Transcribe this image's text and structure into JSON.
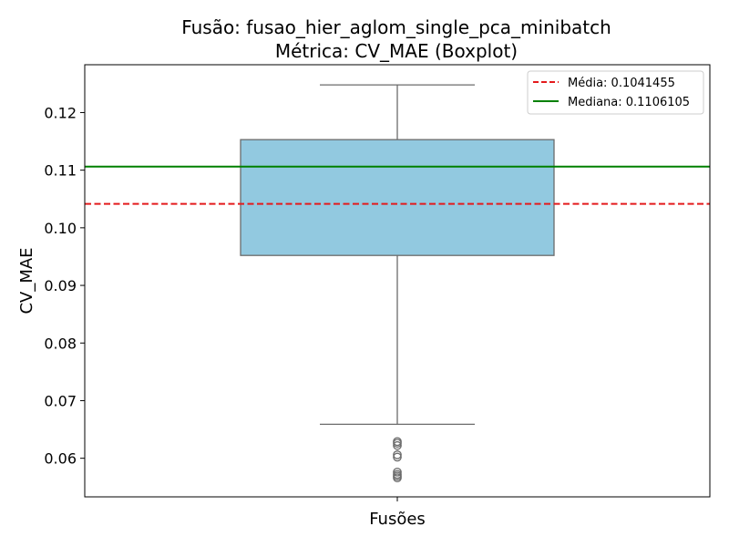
{
  "chart_data": {
    "type": "boxplot",
    "title_line1": "Fusão: fusao_hier_aglom_single_pca_minibatch",
    "title_line2": "Métrica: CV_MAE (Boxplot)",
    "xlabel": "Fusões",
    "ylabel": "CV_MAE",
    "ylim": [
      0.0533,
      0.1283
    ],
    "yticks": [
      0.06,
      0.07,
      0.08,
      0.09,
      0.1,
      0.11,
      0.12
    ],
    "ytick_labels": [
      "0.06",
      "0.07",
      "0.08",
      "0.09",
      "0.10",
      "0.11",
      "0.12"
    ],
    "box": {
      "q1": 0.0952,
      "median": 0.1106,
      "q3": 0.1153,
      "whisker_low": 0.0659,
      "whisker_high": 0.1248,
      "color": "#92c9e0",
      "edge_color": "#6b6b6b"
    },
    "outliers": [
      0.0629,
      0.0626,
      0.0622,
      0.0606,
      0.0602,
      0.0576,
      0.0572,
      0.0569,
      0.0566
    ],
    "mean_line": {
      "value": 0.1041455,
      "label": "Média: 0.1041455",
      "color": "#e41a1c"
    },
    "median_line": {
      "value": 0.1106105,
      "label": "Mediana: 0.1106105",
      "color": "#008000"
    },
    "legend_position": "top-right",
    "grid": false
  }
}
